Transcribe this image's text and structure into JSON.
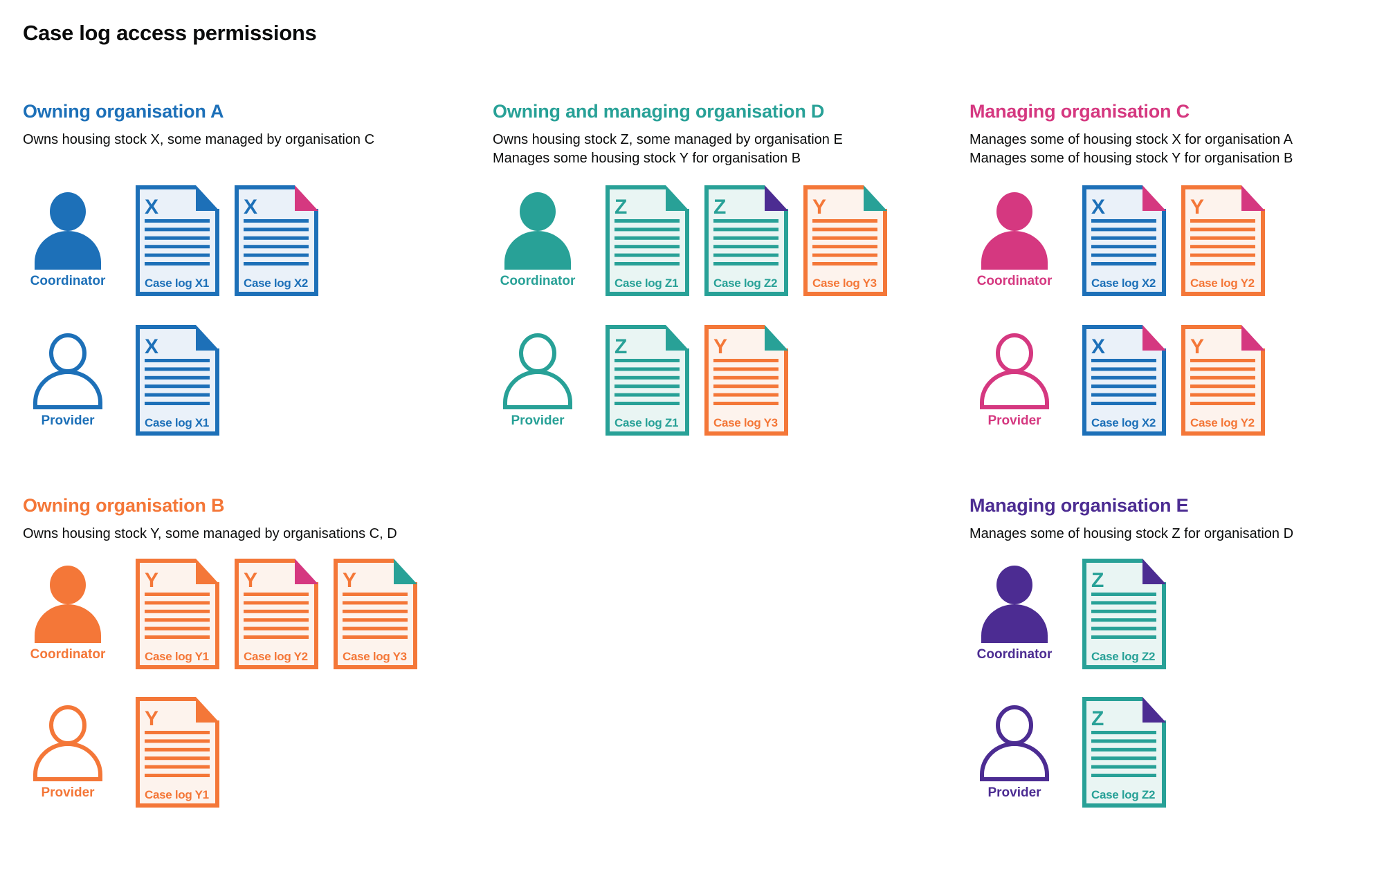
{
  "title": "Case log access permissions",
  "palette": {
    "blue": "#1d70b8",
    "teal": "#28a197",
    "pink": "#d53880",
    "orange": "#f47738",
    "purple": "#4c2c92",
    "text": "#0b0c0c",
    "blue_bg": "#eaf1f9",
    "teal_bg": "#e9f5f3",
    "orange_bg": "#fdf3ed"
  },
  "sections": [
    {
      "id": "owning-organisation-a",
      "heading": "Owning organisation A",
      "color": "blue",
      "description": [
        "Owns housing stock X, some managed by organisation C"
      ],
      "rows": [
        {
          "role": "Coordinator",
          "person_style": "filled",
          "docs": [
            {
              "letter": "X",
              "stock": "blue",
              "fold": "blue",
              "label": "Case log X1"
            },
            {
              "letter": "X",
              "stock": "blue",
              "fold": "pink",
              "label": "Case log X2"
            }
          ]
        },
        {
          "role": "Provider",
          "person_style": "outline",
          "docs": [
            {
              "letter": "X",
              "stock": "blue",
              "fold": "blue",
              "label": "Case log X1"
            }
          ]
        }
      ]
    },
    {
      "id": "owning-and-managing-organisation-d",
      "heading": "Owning and managing organisation D",
      "color": "teal",
      "description": [
        "Owns housing stock Z, some managed by organisation E",
        "Manages some housing stock Y for organisation B"
      ],
      "rows": [
        {
          "role": "Coordinator",
          "person_style": "filled",
          "docs": [
            {
              "letter": "Z",
              "stock": "teal",
              "fold": "teal",
              "label": "Case log Z1"
            },
            {
              "letter": "Z",
              "stock": "teal",
              "fold": "purple",
              "label": "Case log Z2"
            },
            {
              "letter": "Y",
              "stock": "orange",
              "fold": "teal",
              "label": "Case log Y3"
            }
          ]
        },
        {
          "role": "Provider",
          "person_style": "outline",
          "docs": [
            {
              "letter": "Z",
              "stock": "teal",
              "fold": "teal",
              "label": "Case log Z1"
            },
            {
              "letter": "Y",
              "stock": "orange",
              "fold": "teal",
              "label": "Case log Y3"
            }
          ]
        }
      ]
    },
    {
      "id": "managing-organisation-c",
      "heading": "Managing organisation C",
      "color": "pink",
      "description": [
        "Manages some of housing stock X for organisation A",
        "Manages some of housing stock Y for organisation B"
      ],
      "rows": [
        {
          "role": "Coordinator",
          "person_style": "filled",
          "docs": [
            {
              "letter": "X",
              "stock": "blue",
              "fold": "pink",
              "label": "Case log X2"
            },
            {
              "letter": "Y",
              "stock": "orange",
              "fold": "pink",
              "label": "Case log Y2"
            }
          ]
        },
        {
          "role": "Provider",
          "person_style": "outline",
          "docs": [
            {
              "letter": "X",
              "stock": "blue",
              "fold": "pink",
              "label": "Case log X2"
            },
            {
              "letter": "Y",
              "stock": "orange",
              "fold": "pink",
              "label": "Case log Y2"
            }
          ]
        }
      ]
    },
    {
      "id": "owning-organisation-b",
      "heading": "Owning organisation B",
      "color": "orange",
      "description": [
        "Owns housing stock Y, some managed by organisations C, D"
      ],
      "rows": [
        {
          "role": "Coordinator",
          "person_style": "filled",
          "docs": [
            {
              "letter": "Y",
              "stock": "orange",
              "fold": "orange",
              "label": "Case log Y1"
            },
            {
              "letter": "Y",
              "stock": "orange",
              "fold": "pink",
              "label": "Case log Y2"
            },
            {
              "letter": "Y",
              "stock": "orange",
              "fold": "teal",
              "label": "Case log Y3"
            }
          ]
        },
        {
          "role": "Provider",
          "person_style": "outline",
          "docs": [
            {
              "letter": "Y",
              "stock": "orange",
              "fold": "orange",
              "label": "Case log Y1"
            }
          ]
        }
      ]
    },
    {
      "id": "managing-organisation-e",
      "heading": "Managing organisation E",
      "color": "purple",
      "description": [
        "Manages some of housing stock Z for organisation D"
      ],
      "rows": [
        {
          "role": "Coordinator",
          "person_style": "filled",
          "docs": [
            {
              "letter": "Z",
              "stock": "teal",
              "fold": "purple",
              "label": "Case log Z2"
            }
          ]
        },
        {
          "role": "Provider",
          "person_style": "outline",
          "docs": [
            {
              "letter": "Z",
              "stock": "teal",
              "fold": "purple",
              "label": "Case log Z2"
            }
          ]
        }
      ]
    }
  ]
}
